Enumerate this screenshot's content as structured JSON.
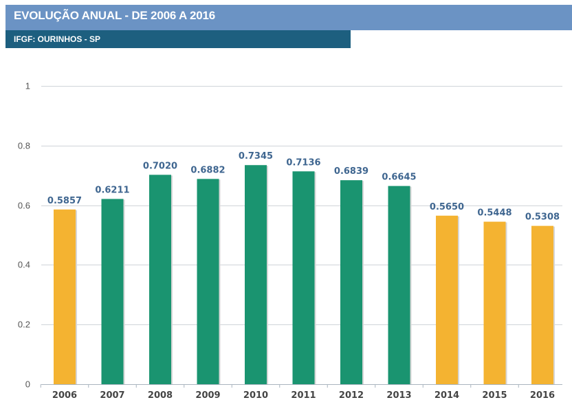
{
  "header": {
    "title": "EVOLUÇÃO ANUAL - DE 2006 A 2016",
    "subtitle": "IFGF: OURINHOS - SP"
  },
  "colors": {
    "header_bg": "#6b93c4",
    "subheader_bg": "#1d5f7f",
    "bar_yellow": "#f4b331",
    "bar_green": "#1a9470",
    "data_label": "#3f6690"
  },
  "chart_data": {
    "type": "bar",
    "categories": [
      "2006",
      "2007",
      "2008",
      "2009",
      "2010",
      "2011",
      "2012",
      "2013",
      "2014",
      "2015",
      "2016"
    ],
    "values": [
      0.5857,
      0.6211,
      0.702,
      0.6882,
      0.7345,
      0.7136,
      0.6839,
      0.6645,
      0.565,
      0.5448,
      0.5308
    ],
    "data_labels": [
      "0.5857",
      "0.6211",
      "0.7020",
      "0.6882",
      "0.7345",
      "0.7136",
      "0.6839",
      "0.6645",
      "0.5650",
      "0.5448",
      "0.5308"
    ],
    "bar_colors": [
      "#f4b331",
      "#1a9470",
      "#1a9470",
      "#1a9470",
      "#1a9470",
      "#1a9470",
      "#1a9470",
      "#1a9470",
      "#f4b331",
      "#f4b331",
      "#f4b331"
    ],
    "ylim": [
      0,
      1
    ],
    "yticks": [
      "0",
      "0.2",
      "0.4",
      "0.6",
      "0.8",
      "1"
    ],
    "grid": true,
    "legend": "none"
  }
}
